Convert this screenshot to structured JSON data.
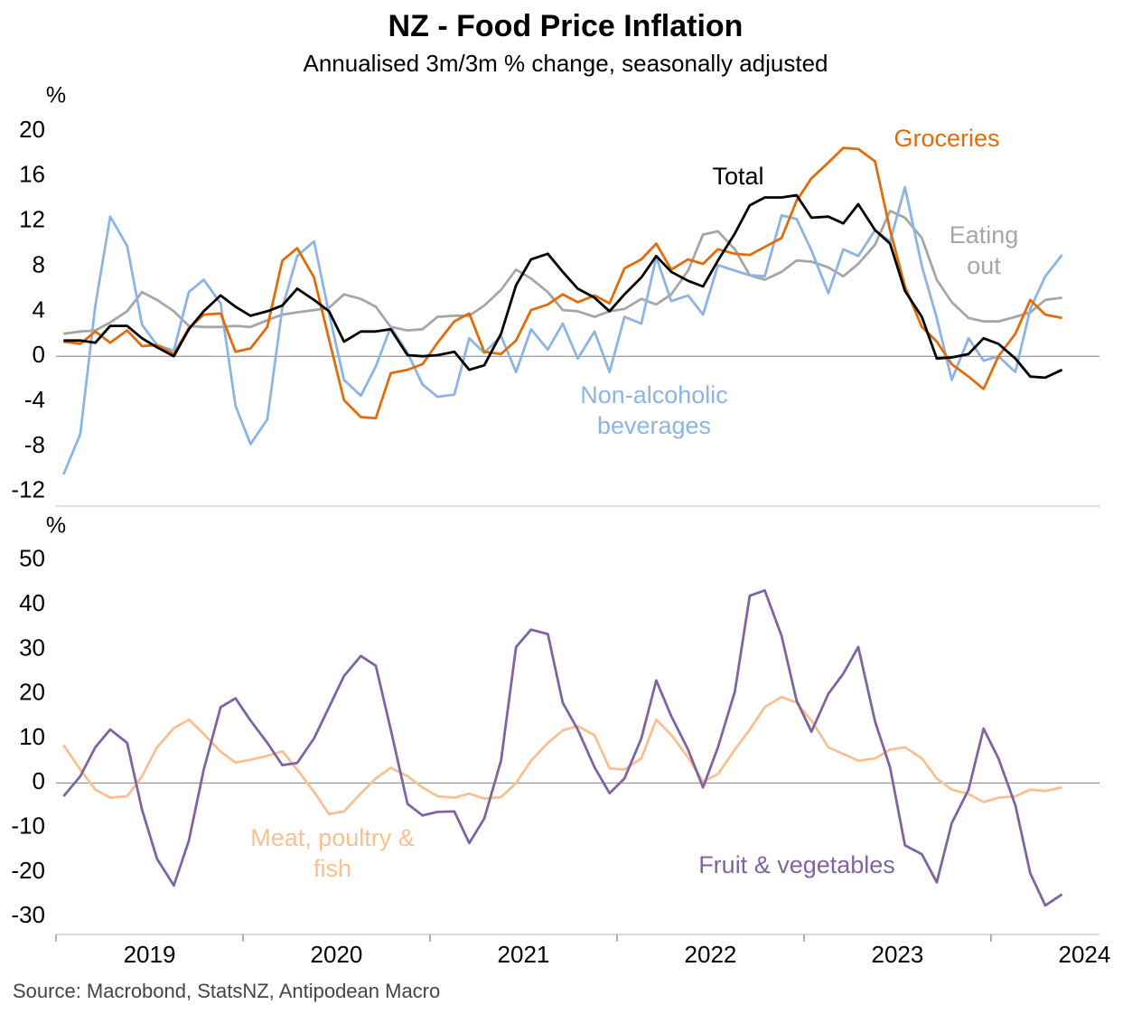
{
  "source": "Source: Macrobond, StatsNZ, Antipodean Macro",
  "chart_data": [
    {
      "type": "line",
      "title": "NZ - Food Price Inflation",
      "subtitle": "Annualised 3m/3m % change, seasonally adjusted",
      "ylabel": "%",
      "xlim": [
        2019,
        2024.58
      ],
      "xticks": [
        2019,
        2020,
        2021,
        2022,
        2023,
        2024
      ],
      "ylim": [
        -13.3,
        21.2
      ],
      "yticks": [
        -12,
        -8,
        -4,
        0,
        4,
        8,
        12,
        16,
        20
      ],
      "zero_line": true,
      "x": [
        2019.04,
        2019.13,
        2019.21,
        2019.29,
        2019.38,
        2019.46,
        2019.54,
        2019.63,
        2019.71,
        2019.79,
        2019.88,
        2019.96,
        2020.04,
        2020.13,
        2020.21,
        2020.29,
        2020.38,
        2020.46,
        2020.54,
        2020.63,
        2020.71,
        2020.79,
        2020.88,
        2020.96,
        2021.04,
        2021.13,
        2021.21,
        2021.29,
        2021.38,
        2021.46,
        2021.54,
        2021.63,
        2021.71,
        2021.79,
        2021.88,
        2021.96,
        2022.04,
        2022.13,
        2022.21,
        2022.29,
        2022.38,
        2022.46,
        2022.54,
        2022.63,
        2022.71,
        2022.79,
        2022.88,
        2022.96,
        2023.04,
        2023.13,
        2023.21,
        2023.29,
        2023.38,
        2023.46,
        2023.54,
        2023.63,
        2023.71,
        2023.79,
        2023.88,
        2023.96,
        2024.04,
        2024.13,
        2024.21,
        2024.29,
        2024.38
      ],
      "series": [
        {
          "name": "Eating out",
          "color": "#a6a6a6",
          "values": [
            2.0,
            2.2,
            2.3,
            3.0,
            4.0,
            5.7,
            5.0,
            4.0,
            2.7,
            2.6,
            2.6,
            2.7,
            2.6,
            3.2,
            3.7,
            3.9,
            4.1,
            4.3,
            5.5,
            5.1,
            4.4,
            2.6,
            2.3,
            2.4,
            3.5,
            3.6,
            3.6,
            4.5,
            5.9,
            7.7,
            6.9,
            5.7,
            4.1,
            4.0,
            3.5,
            4.0,
            4.2,
            5.1,
            4.6,
            5.5,
            7.6,
            10.8,
            11.1,
            9.5,
            7.2,
            6.8,
            7.5,
            8.5,
            8.4,
            7.9,
            7.1,
            8.2,
            9.9,
            12.9,
            12.3,
            10.5,
            6.8,
            4.8,
            3.4,
            3.1,
            3.1,
            3.5,
            3.9,
            5.0,
            5.2
          ]
        },
        {
          "name": "Non-alcoholic beverages",
          "color": "#8db4e2",
          "values": [
            -10.5,
            -6.9,
            4.5,
            12.4,
            9.8,
            2.8,
            1.0,
            0.5,
            5.7,
            6.8,
            4.7,
            -4.4,
            -7.8,
            -5.6,
            4.3,
            8.9,
            10.2,
            3.8,
            -2.1,
            -3.5,
            -0.9,
            2.6,
            0.3,
            -2.5,
            -3.6,
            -3.4,
            1.6,
            0.3,
            1.8,
            -1.4,
            2.4,
            0.6,
            2.9,
            -0.2,
            2.2,
            -1.4,
            3.5,
            2.9,
            8.8,
            4.9,
            5.4,
            3.7,
            8.1,
            7.6,
            7.2,
            7.1,
            12.5,
            12.2,
            9.4,
            5.6,
            9.5,
            8.9,
            11.2,
            10.2,
            15.0,
            8.0,
            3.4,
            -2.1,
            1.6,
            -0.4,
            0.0,
            -1.4,
            4.2,
            7.1,
            9.0
          ]
        },
        {
          "name": "Groceries",
          "color": "#e36c0a",
          "values": [
            1.3,
            1.1,
            2.2,
            1.2,
            2.3,
            0.9,
            1.0,
            0.2,
            2.5,
            3.7,
            3.8,
            0.4,
            0.7,
            2.6,
            8.5,
            9.6,
            7.0,
            1.5,
            -3.9,
            -5.4,
            -5.5,
            -1.5,
            -1.2,
            -0.7,
            1.2,
            3.1,
            3.8,
            0.4,
            0.2,
            1.4,
            4.1,
            4.6,
            5.5,
            4.8,
            5.4,
            4.7,
            7.8,
            8.6,
            10.0,
            7.7,
            8.6,
            8.2,
            9.5,
            9.1,
            9.0,
            9.7,
            10.5,
            13.8,
            15.8,
            17.2,
            18.5,
            18.4,
            17.3,
            11.2,
            6.2,
            2.6,
            1.3,
            -0.7,
            -1.8,
            -2.9,
            0.0,
            2.0,
            5.0,
            3.7,
            3.4
          ]
        },
        {
          "name": "Total",
          "color": "#000000",
          "values": [
            1.4,
            1.4,
            1.2,
            2.7,
            2.7,
            1.6,
            0.8,
            0.0,
            2.4,
            4.0,
            5.4,
            4.4,
            3.6,
            4.0,
            4.5,
            6.0,
            5.0,
            4.0,
            1.3,
            2.2,
            2.2,
            2.4,
            0.1,
            0.0,
            0.1,
            0.4,
            -1.2,
            -0.8,
            2.0,
            6.3,
            8.6,
            9.1,
            7.5,
            6.0,
            5.2,
            4.0,
            5.5,
            7.0,
            8.9,
            7.5,
            6.7,
            6.2,
            8.5,
            10.9,
            13.4,
            14.1,
            14.1,
            14.3,
            12.3,
            12.4,
            11.8,
            13.5,
            11.2,
            10.0,
            5.8,
            3.5,
            -0.2,
            -0.1,
            0.2,
            1.6,
            1.1,
            -0.2,
            -1.8,
            -1.9,
            -1.2
          ]
        }
      ]
    },
    {
      "type": "line",
      "ylabel": "%",
      "xlim": [
        2019,
        2024.58
      ],
      "xticks": [
        2019,
        2020,
        2021,
        2022,
        2023,
        2024
      ],
      "ylim": [
        -34,
        53
      ],
      "yticks": [
        -30,
        -20,
        -10,
        0,
        10,
        20,
        30,
        40,
        50
      ],
      "zero_line": true,
      "x": [
        2019.04,
        2019.13,
        2019.21,
        2019.29,
        2019.38,
        2019.46,
        2019.54,
        2019.63,
        2019.71,
        2019.79,
        2019.88,
        2019.96,
        2020.04,
        2020.13,
        2020.21,
        2020.29,
        2020.38,
        2020.46,
        2020.54,
        2020.63,
        2020.71,
        2020.79,
        2020.88,
        2020.96,
        2021.04,
        2021.13,
        2021.21,
        2021.29,
        2021.38,
        2021.46,
        2021.54,
        2021.63,
        2021.71,
        2021.79,
        2021.88,
        2021.96,
        2022.04,
        2022.13,
        2022.21,
        2022.29,
        2022.38,
        2022.46,
        2022.54,
        2022.63,
        2022.71,
        2022.79,
        2022.88,
        2022.96,
        2023.04,
        2023.13,
        2023.21,
        2023.29,
        2023.38,
        2023.46,
        2023.54,
        2023.63,
        2023.71,
        2023.79,
        2023.88,
        2023.96,
        2024.04,
        2024.13,
        2024.21,
        2024.29,
        2024.38
      ],
      "series": [
        {
          "name": "Meat, poultry & fish",
          "color": "#fac090",
          "values": [
            8.5,
            3,
            -1.5,
            -3.3,
            -3,
            1.5,
            8,
            12.3,
            14.2,
            11,
            7,
            4.6,
            5.2,
            6.1,
            7.1,
            3,
            -2,
            -7,
            -6.4,
            -2.3,
            1,
            3.4,
            1.5,
            -1,
            -3,
            -3.3,
            -2.4,
            -3.5,
            -3.2,
            0,
            5,
            9,
            11.8,
            12.8,
            10.7,
            3.3,
            3,
            5.5,
            14.2,
            10.8,
            5.7,
            0.3,
            2,
            7.5,
            12,
            17,
            19.3,
            18,
            14,
            8,
            6.5,
            5,
            5.5,
            7.5,
            8,
            5.5,
            1,
            -1.5,
            -2.5,
            -4.3,
            -3.3,
            -3,
            -1.5,
            -1.8,
            -1
          ]
        },
        {
          "name": "Fruit & vegetables",
          "color": "#8064a2",
          "values": [
            -3,
            1.5,
            8,
            12,
            9,
            -6,
            -17,
            -23,
            -13,
            3,
            17,
            19,
            14,
            9,
            4,
            4.5,
            10,
            17,
            24,
            28.5,
            26.3,
            12,
            -4.7,
            -7.3,
            -6.5,
            -6.4,
            -13.5,
            -8,
            5,
            30.5,
            34.4,
            33.4,
            18,
            12,
            3.5,
            -2.3,
            1,
            10,
            23,
            15,
            7.5,
            -1,
            8,
            20.5,
            42,
            43.2,
            33,
            18.5,
            11.5,
            20,
            24.5,
            30.5,
            13.8,
            3.5,
            -14,
            -16,
            -22.3,
            -9,
            -1.5,
            12.2,
            5.5,
            -5,
            -20.3,
            -27.5,
            -25
          ]
        }
      ]
    }
  ]
}
